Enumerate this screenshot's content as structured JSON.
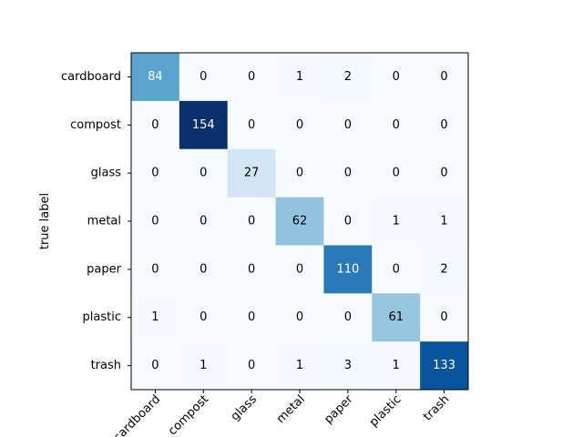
{
  "chart_data": {
    "type": "heatmap",
    "title": "",
    "xlabel": "",
    "ylabel": "true label",
    "x_categories": [
      "cardboard",
      "compost",
      "glass",
      "metal",
      "paper",
      "plastic",
      "trash"
    ],
    "y_categories": [
      "cardboard",
      "compost",
      "glass",
      "metal",
      "paper",
      "plastic",
      "trash"
    ],
    "matrix": [
      [
        84,
        0,
        0,
        1,
        2,
        0,
        0
      ],
      [
        0,
        154,
        0,
        0,
        0,
        0,
        0
      ],
      [
        0,
        0,
        27,
        0,
        0,
        0,
        0
      ],
      [
        0,
        0,
        0,
        62,
        0,
        1,
        1
      ],
      [
        0,
        0,
        0,
        0,
        110,
        0,
        2
      ],
      [
        1,
        0,
        0,
        0,
        0,
        61,
        0
      ],
      [
        0,
        1,
        0,
        1,
        3,
        1,
        133
      ]
    ],
    "colormap": "Blues",
    "value_range": [
      0,
      154
    ],
    "x_tick_rotation": 45,
    "grid": false,
    "legend": "none"
  }
}
